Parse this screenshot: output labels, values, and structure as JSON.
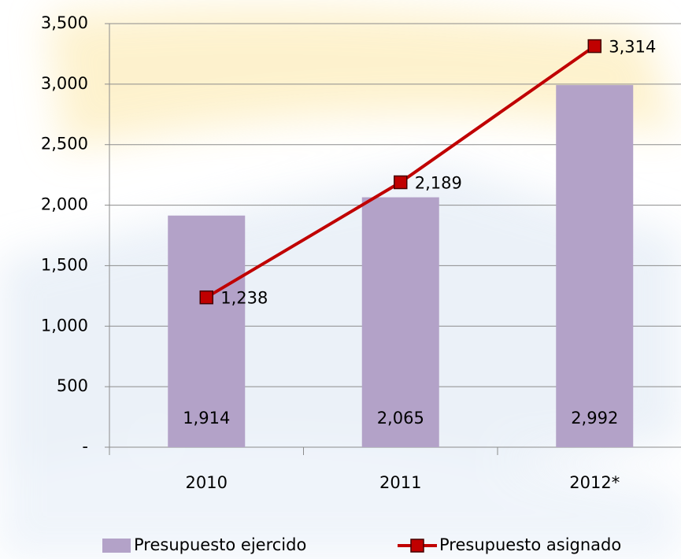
{
  "chart_data": {
    "type": "bar",
    "categories": [
      "2010",
      "2011",
      "2012*"
    ],
    "series": [
      {
        "name": "Presupuesto ejercido",
        "type": "bar",
        "color": "#b3a2c8",
        "values": [
          1914,
          2065,
          2992
        ],
        "value_labels": [
          "1,914",
          "2,065",
          "2,992"
        ]
      },
      {
        "name": "Presupuesto asignado",
        "type": "line",
        "color": "#c00000",
        "values": [
          1238,
          2189,
          3314
        ],
        "value_labels": [
          "1,238",
          "2,189",
          "3,314"
        ]
      }
    ],
    "ylim": [
      0,
      3500
    ],
    "yticks": [
      {
        "value": 0,
        "label": "-"
      },
      500,
      {
        "value": 1000,
        "label": "1,000"
      },
      {
        "value": 1500,
        "label": "1,500"
      },
      {
        "value": 2000,
        "label": "2,000"
      },
      {
        "value": 2500,
        "label": "2,500"
      },
      {
        "value": 3000,
        "label": "3,000"
      },
      {
        "value": 3500,
        "label": "3,500"
      }
    ],
    "grid": true,
    "legend": "bottom"
  }
}
